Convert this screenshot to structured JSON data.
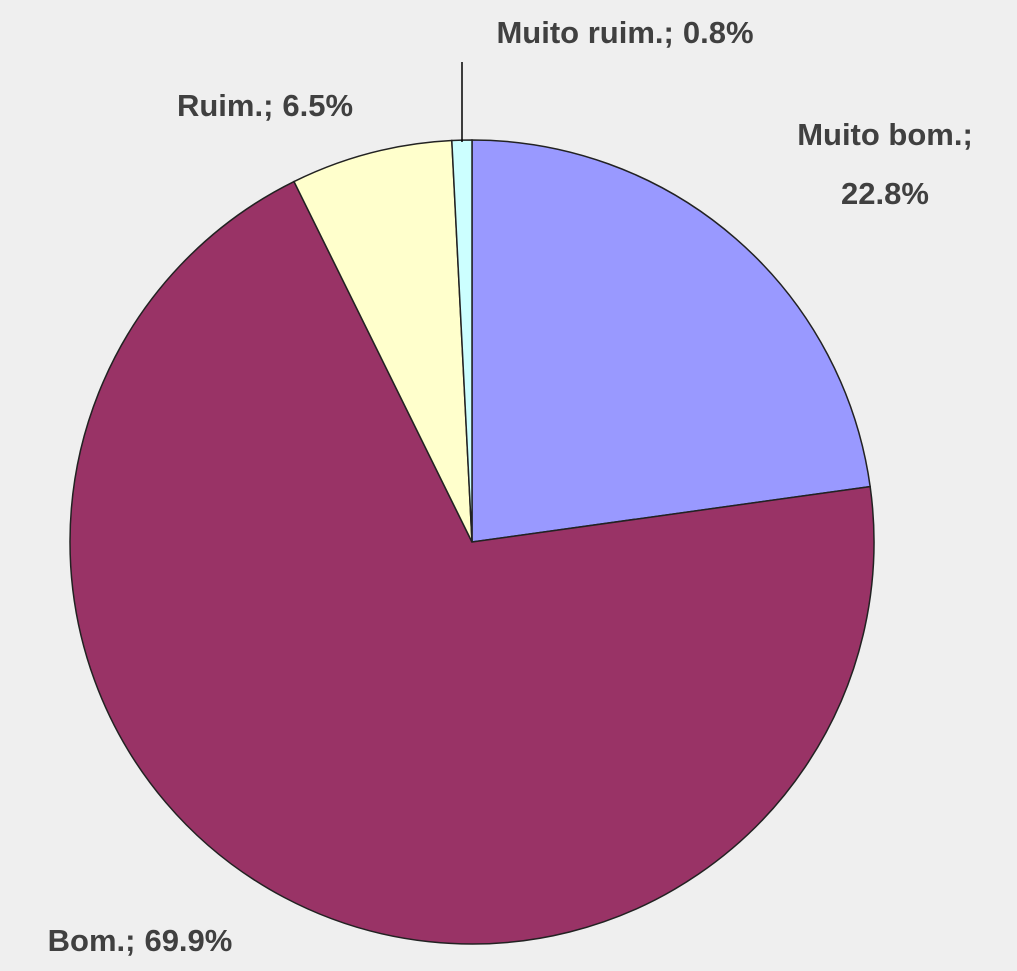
{
  "chart_data": {
    "type": "pie",
    "categories": [
      "Muito bom.",
      "Bom.",
      "Ruim.",
      "Muito ruim."
    ],
    "values": [
      22.8,
      69.9,
      6.5,
      0.8
    ],
    "value_labels": [
      "22.8%",
      "69.9%",
      "6.5%",
      "0.8%"
    ],
    "separator": ";",
    "colors": [
      "#9999ff",
      "#993366",
      "#ffffcc",
      "#ccffff"
    ]
  }
}
